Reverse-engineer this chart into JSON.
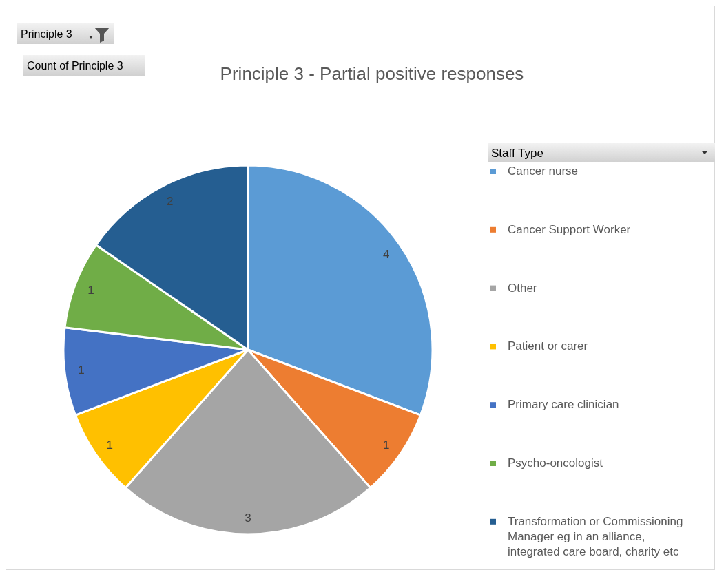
{
  "chart_data": {
    "type": "pie",
    "title": "Principle 3 - Partial positive responses",
    "legend_title": "Staff Type",
    "annotations": [
      "Principle 3",
      "Count of Principle 3"
    ],
    "categories": [
      "Cancer nurse",
      "Cancer Support Worker",
      "Other",
      "Patient or carer",
      "Primary care clinician",
      "Psycho-oncologist",
      "Transformation or Commissioning Manager eg in an alliance, integrated care board, charity etc"
    ],
    "values": [
      4,
      1,
      3,
      1,
      1,
      1,
      2
    ],
    "colors": [
      "#5b9bd5",
      "#ed7d31",
      "#a5a5a5",
      "#ffc000",
      "#4472c4",
      "#70ad47",
      "#255e91"
    ],
    "data_labels": true,
    "legend": "right"
  }
}
